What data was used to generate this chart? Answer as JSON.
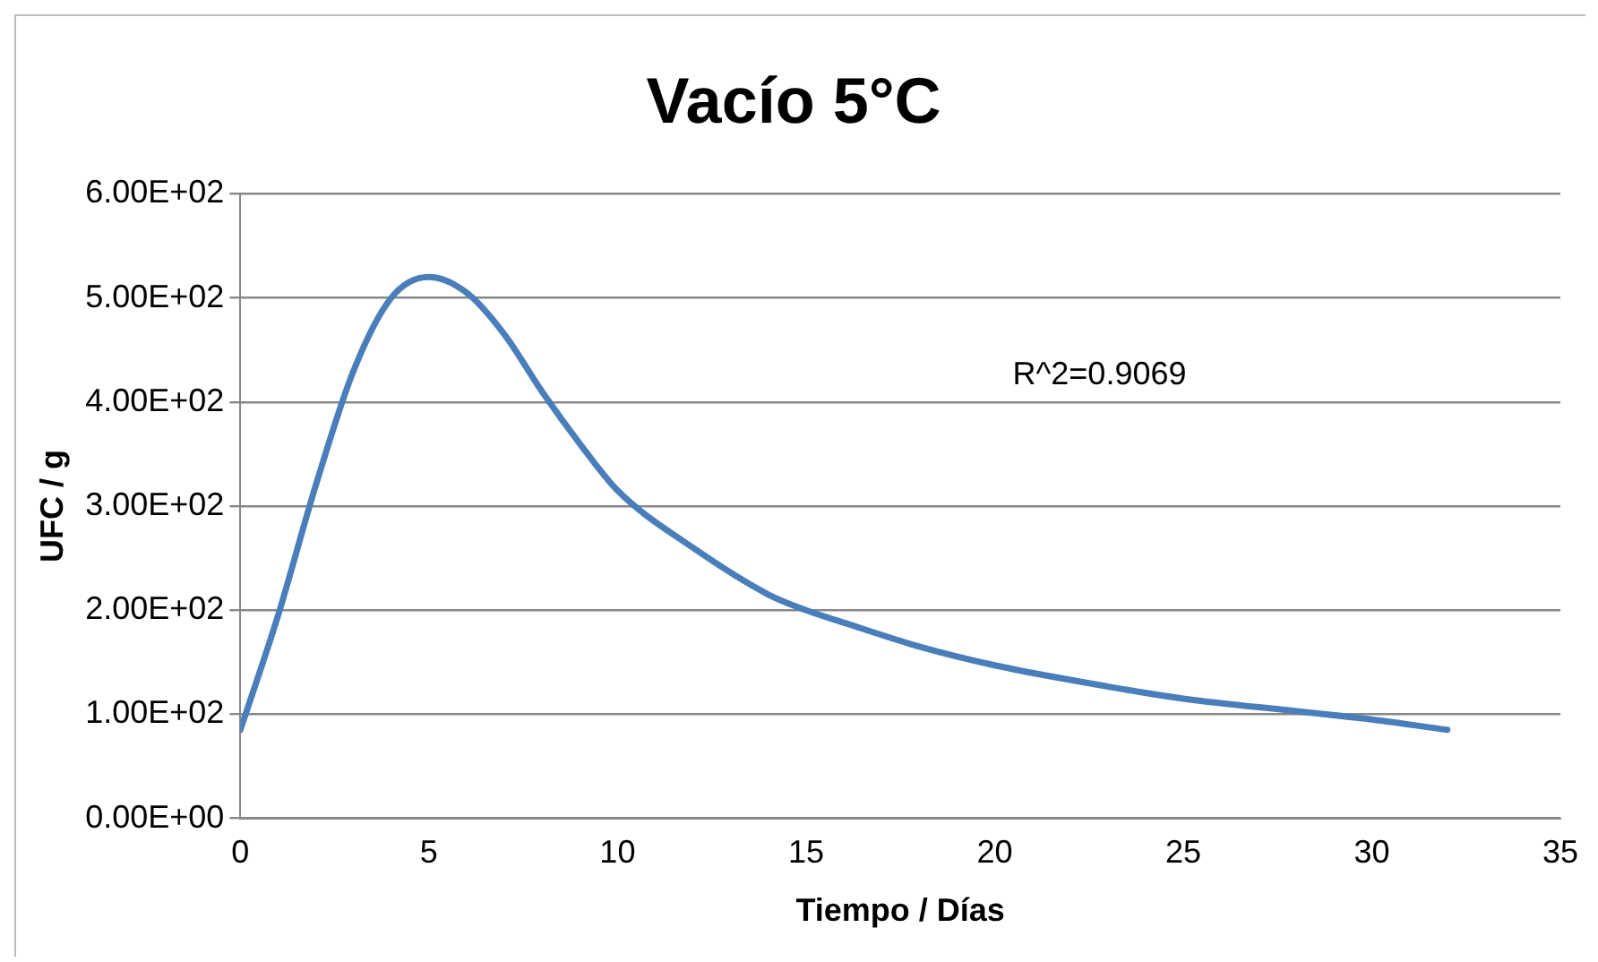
{
  "chart_data": {
    "type": "line",
    "title": "Vacío 5°C",
    "xlabel": "Tiempo / Días",
    "ylabel": "UFC / g",
    "x": [
      0,
      1,
      2,
      3,
      4,
      5,
      6,
      7,
      8,
      9,
      10,
      12,
      14,
      15,
      16,
      18,
      20,
      22,
      25,
      28,
      30,
      32
    ],
    "series": [
      {
        "color": "#4a7ebb",
        "values": [
          85,
          195,
          320,
          430,
          500,
          520,
          505,
          465,
          410,
          360,
          315,
          260,
          215,
          200,
          188,
          165,
          147,
          133,
          115,
          103,
          95,
          85
        ]
      }
    ],
    "xlim": [
      0,
      35
    ],
    "xticks": [
      0,
      5,
      10,
      15,
      20,
      25,
      30,
      35
    ],
    "ylim": [
      0,
      600
    ],
    "yticks": [
      {
        "value": 0,
        "label": "0.00E+00"
      },
      {
        "value": 100,
        "label": "1.00E+02"
      },
      {
        "value": 200,
        "label": "2.00E+02"
      },
      {
        "value": 300,
        "label": "3.00E+02"
      },
      {
        "value": 400,
        "label": "4.00E+02"
      },
      {
        "value": 500,
        "label": "5.00E+02"
      },
      {
        "value": 600,
        "label": "6.00E+02"
      }
    ],
    "annotations": [
      "R^2=0.9069"
    ],
    "grid": "y",
    "legend": false,
    "marker": "none",
    "line_style": "solid"
  }
}
